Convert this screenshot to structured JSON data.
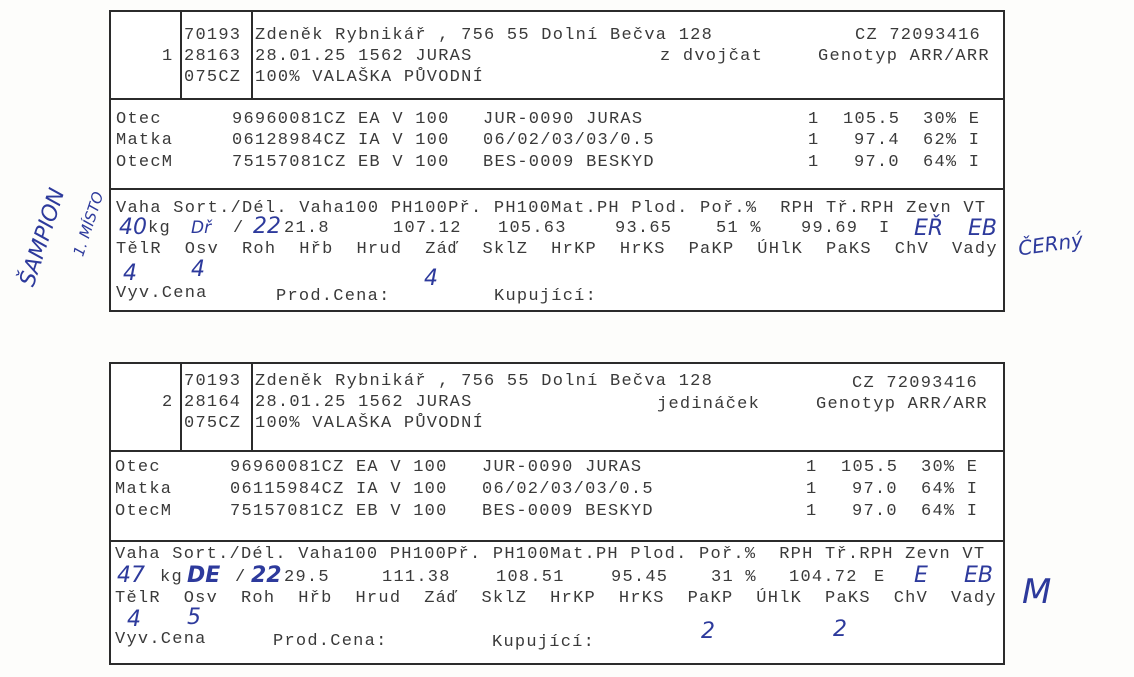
{
  "cards": [
    {
      "index": "1",
      "codes": [
        "70193",
        "28163",
        "075CZ"
      ],
      "owner": "Zdeněk Rybnikář , 756 55 Dolní Bečva 128",
      "birth": "28.01.25 1562 JURAS",
      "breed": "100% VALAŠKA PŮVODNÍ",
      "reg": "CZ 72093416",
      "birth_type": "z dvojčat",
      "genotype": "Genotyp ARR/ARR",
      "parents": [
        {
          "role": "Otec",
          "id": "96960081CZ EA V 100",
          "name": "JUR-0090 JURAS",
          "n": "1",
          "score": "105.5",
          "pct": "30% E"
        },
        {
          "role": "Matka",
          "id": "06128984CZ IA V 100",
          "name": "06/02/03/03/0.5",
          "n": "1",
          "score": "97.4",
          "pct": "62% I"
        },
        {
          "role": "OtecM",
          "id": "75157081CZ EB V 100",
          "name": "BES-0009 BESKYD",
          "n": "1",
          "score": "97.0",
          "pct": "64% I"
        }
      ],
      "measure_header": "Vaha Sort./Dél. Vaha100 PH100Př. PH100Mat.PH Plod. Poř.%  RPH Tř.RPH Zevn VT",
      "values": {
        "kg": "kg",
        "slash": "/",
        "vaha100": "21.8",
        "ph100pr": "107.12",
        "ph100mat": "105.63",
        "plod": "93.65",
        "por": "51 %",
        "rph": "99.69",
        "trida": "I"
      },
      "handwritten": {
        "weight": "40",
        "sort": "Dř",
        "length": "22",
        "zevn": "EŘ",
        "vt": "EB",
        "telr": "4",
        "osv": "4",
        "zad": "4"
      },
      "score_header": "TělR  Osv  Roh  Hřb  Hrud  Záď  SklZ  HrKP  HrKS  PaKP  ÚHlK  PaKS  ChV  Vady",
      "footer": {
        "vyv": "Vyv.Cena",
        "prod": "Prod.Cena:",
        "kup": "Kupující:"
      }
    },
    {
      "index": "2",
      "codes": [
        "70193",
        "28164",
        "075CZ"
      ],
      "owner": "Zdeněk Rybnikář , 756 55 Dolní Bečva 128",
      "birth": "28.01.25 1562 JURAS",
      "breed": "100% VALAŠKA PŮVODNÍ",
      "reg": "CZ 72093416",
      "birth_type": "jedináček",
      "genotype": "Genotyp ARR/ARR",
      "parents": [
        {
          "role": "Otec",
          "id": "96960081CZ EA V 100",
          "name": "JUR-0090 JURAS",
          "n": "1",
          "score": "105.5",
          "pct": "30% E"
        },
        {
          "role": "Matka",
          "id": "06115984CZ IA V 100",
          "name": "06/02/03/03/0.5",
          "n": "1",
          "score": "97.0",
          "pct": "64% I"
        },
        {
          "role": "OtecM",
          "id": "75157081CZ EB V 100",
          "name": "BES-0009 BESKYD",
          "n": "1",
          "score": "97.0",
          "pct": "64% I"
        }
      ],
      "measure_header": "Vaha Sort./Dél. Vaha100 PH100Př. PH100Mat.PH Plod. Poř.%  RPH Tř.RPH Zevn VT",
      "values": {
        "kg": "kg",
        "slash": "/",
        "vaha100": "29.5",
        "ph100pr": "111.38",
        "ph100mat": "108.51",
        "plod": "95.45",
        "por": "31 %",
        "rph": "104.72",
        "trida": "E"
      },
      "handwritten": {
        "weight": "47",
        "sort": "DE",
        "length": "22",
        "zevn": "E",
        "vt": "EB",
        "telr": "4",
        "osv": "5",
        "pakp": "2",
        "paks": "2"
      },
      "score_header": "TělR  Osv  Roh  Hřb  Hrud  Záď  SklZ  HrKP  HrKS  PaKP  ÚHlK  PaKS  ChV  Vady",
      "footer": {
        "vyv": "Vyv.Cena",
        "prod": "Prod.Cena:",
        "kup": "Kupující:"
      }
    }
  ],
  "margin_notes": {
    "champion": "ŠAMPION",
    "place": "1. MÍSTO",
    "color1": "ČERný",
    "color2": "M"
  },
  "ink_color": "#2d3a9c"
}
